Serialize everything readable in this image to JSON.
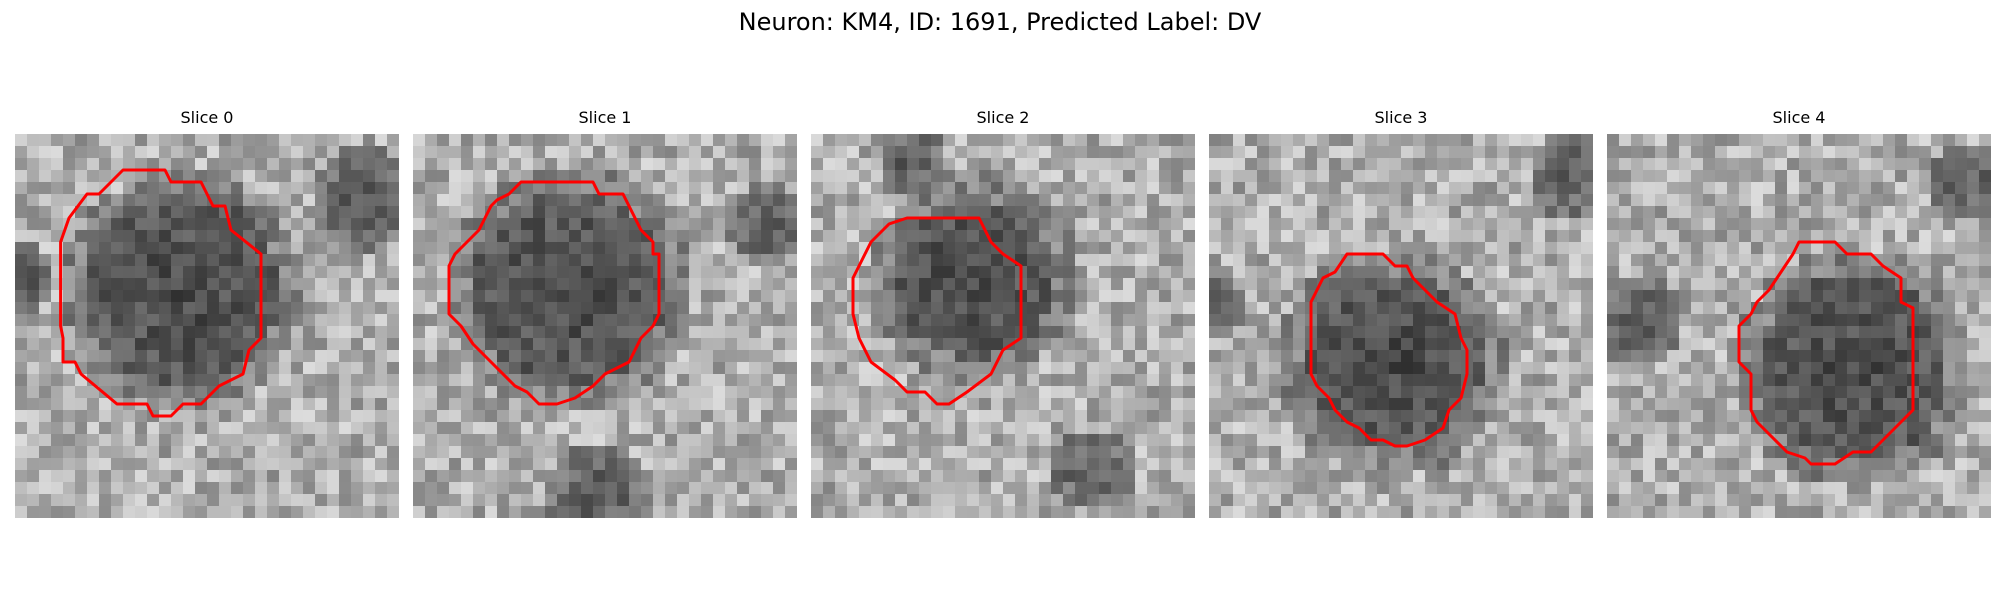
{
  "figure": {
    "title": "Neuron: KM4, ID: 1691, Predicted Label: DV",
    "contour_color": "#ff0000"
  },
  "slices": [
    {
      "title": "Slice 0",
      "cell_side": "left"
    },
    {
      "title": "Slice 1",
      "cell_side": "left"
    },
    {
      "title": "Slice 2",
      "cell_side": "left"
    },
    {
      "title": "Slice 3",
      "cell_side": "center"
    },
    {
      "title": "Slice 4",
      "cell_side": "right"
    }
  ]
}
